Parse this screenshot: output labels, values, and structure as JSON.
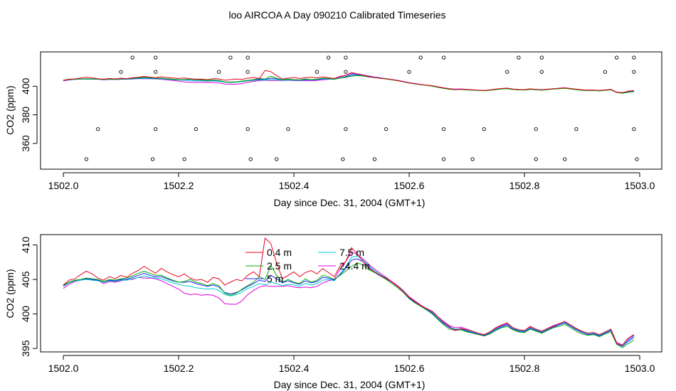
{
  "title": "loo AIRCOA A  Day 090210  Calibrated Timeseries",
  "colors": {
    "0.4 m": "#e8001c",
    "2.5 m": "#00b000",
    "5 m": "#2020ff",
    "7.5 m": "#00d0d0",
    "24.4 m": "#e000e0"
  },
  "chart_data": [
    {
      "type": "line+scatter",
      "xlabel": "Day since Dec. 31, 2004 (GMT+1)",
      "ylabel": "CO2 (ppm)",
      "xlim": [
        1502.0,
        1503.0
      ],
      "ylim": [
        342,
        424
      ],
      "x_ticks": [
        "1502.0",
        "1502.2",
        "1502.4",
        "1502.6",
        "1502.8",
        "1503.0"
      ],
      "y_ticks": [
        "360",
        "380",
        "400"
      ],
      "grid": false,
      "scatter_points": [
        [
          1502.12,
          420
        ],
        [
          1502.16,
          420
        ],
        [
          1502.29,
          420
        ],
        [
          1502.32,
          420
        ],
        [
          1502.46,
          420
        ],
        [
          1502.49,
          420
        ],
        [
          1502.62,
          420
        ],
        [
          1502.66,
          420
        ],
        [
          1502.79,
          420
        ],
        [
          1502.83,
          420
        ],
        [
          1502.96,
          420
        ],
        [
          1502.99,
          420
        ],
        [
          1502.1,
          410
        ],
        [
          1502.16,
          410
        ],
        [
          1502.27,
          410
        ],
        [
          1502.32,
          410
        ],
        [
          1502.44,
          410
        ],
        [
          1502.49,
          410
        ],
        [
          1502.6,
          410
        ],
        [
          1502.77,
          410
        ],
        [
          1502.83,
          410
        ],
        [
          1502.94,
          410
        ],
        [
          1502.99,
          410
        ],
        [
          1502.06,
          370
        ],
        [
          1502.16,
          370
        ],
        [
          1502.23,
          370
        ],
        [
          1502.32,
          370
        ],
        [
          1502.39,
          370
        ],
        [
          1502.49,
          370
        ],
        [
          1502.56,
          370
        ],
        [
          1502.66,
          370
        ],
        [
          1502.73,
          370
        ],
        [
          1502.82,
          370
        ],
        [
          1502.89,
          370
        ],
        [
          1502.99,
          370
        ],
        [
          1502.04,
          349
        ],
        [
          1502.155,
          349
        ],
        [
          1502.21,
          349
        ],
        [
          1502.325,
          349
        ],
        [
          1502.37,
          349
        ],
        [
          1502.485,
          349
        ],
        [
          1502.54,
          349
        ],
        [
          1502.66,
          349
        ],
        [
          1502.71,
          349
        ],
        [
          1502.82,
          349
        ],
        [
          1502.87,
          349
        ],
        [
          1502.995,
          349
        ]
      ]
    },
    {
      "type": "line",
      "xlabel": "Day since Dec. 31, 2004 (GMT+1)",
      "ylabel": "CO2 (ppm)",
      "xlim": [
        1502.0,
        1503.0
      ],
      "ylim": [
        394.5,
        411.5
      ],
      "x_ticks": [
        "1502.0",
        "1502.2",
        "1502.4",
        "1502.6",
        "1502.8",
        "1503.0"
      ],
      "y_ticks": [
        "395",
        "400",
        "405",
        "410"
      ],
      "grid": false,
      "legend_position": "top-center",
      "legend": [
        "0.4 m",
        "2.5 m",
        "5 m",
        "7.5 m",
        "24.4 m"
      ],
      "x": [
        1502.0,
        1502.01,
        1502.02,
        1502.03,
        1502.04,
        1502.05,
        1502.06,
        1502.07,
        1502.08,
        1502.09,
        1502.1,
        1502.11,
        1502.12,
        1502.13,
        1502.14,
        1502.15,
        1502.16,
        1502.17,
        1502.18,
        1502.19,
        1502.2,
        1502.21,
        1502.22,
        1502.23,
        1502.24,
        1502.25,
        1502.26,
        1502.27,
        1502.28,
        1502.29,
        1502.3,
        1502.31,
        1502.32,
        1502.33,
        1502.34,
        1502.35,
        1502.36,
        1502.37,
        1502.38,
        1502.39,
        1502.4,
        1502.41,
        1502.42,
        1502.43,
        1502.44,
        1502.45,
        1502.46,
        1502.47,
        1502.48,
        1502.49,
        1502.5,
        1502.51,
        1502.52,
        1502.53,
        1502.54,
        1502.55,
        1502.56,
        1502.57,
        1502.58,
        1502.59,
        1502.6,
        1502.61,
        1502.62,
        1502.63,
        1502.64,
        1502.65,
        1502.66,
        1502.67,
        1502.68,
        1502.69,
        1502.7,
        1502.71,
        1502.72,
        1502.73,
        1502.74,
        1502.75,
        1502.76,
        1502.77,
        1502.78,
        1502.79,
        1502.8,
        1502.81,
        1502.82,
        1502.83,
        1502.84,
        1502.85,
        1502.86,
        1502.87,
        1502.88,
        1502.89,
        1502.9,
        1502.91,
        1502.92,
        1502.93,
        1502.94,
        1502.95,
        1502.96,
        1502.97,
        1502.98,
        1502.99
      ],
      "series": [
        {
          "name": "0.4 m",
          "values": [
            404.2,
            404.9,
            405.1,
            405.7,
            406.2,
            405.8,
            405.2,
            404.9,
            405.4,
            405.1,
            405.6,
            405.3,
            405.9,
            406.3,
            406.9,
            406.4,
            405.9,
            406.6,
            406.1,
            405.7,
            405.4,
            405.8,
            405.2,
            404.9,
            405.0,
            404.6,
            405.3,
            405.1,
            404.2,
            404.6,
            405.0,
            404.8,
            405.6,
            406.1,
            405.4,
            411.0,
            410.2,
            407.4,
            405.1,
            405.6,
            406.1,
            405.4,
            406.0,
            406.3,
            405.8,
            406.6,
            406.0,
            405.4,
            406.9,
            407.6,
            409.6,
            408.7,
            407.6,
            406.6,
            406.1,
            405.5,
            405.2,
            404.6,
            404.0,
            403.2,
            402.4,
            401.8,
            401.2,
            400.8,
            400.4,
            399.6,
            398.8,
            398.2,
            397.6,
            397.9,
            397.7,
            397.5,
            397.2,
            397.0,
            397.4,
            398.0,
            398.4,
            398.7,
            398.0,
            397.7,
            397.6,
            398.2,
            397.8,
            397.5,
            397.9,
            398.2,
            398.6,
            398.9,
            398.4,
            397.9,
            397.5,
            397.2,
            397.3,
            397.0,
            397.4,
            397.8,
            395.7,
            395.5,
            396.5,
            397.0
          ]
        },
        {
          "name": "2.5 m",
          "values": [
            404.2,
            404.6,
            404.9,
            405.0,
            405.2,
            405.1,
            405.0,
            404.7,
            405.0,
            404.9,
            405.1,
            405.2,
            405.5,
            405.9,
            406.2,
            405.9,
            405.6,
            405.6,
            405.2,
            404.9,
            404.6,
            404.7,
            405.0,
            404.6,
            404.4,
            404.1,
            404.4,
            404.1,
            403.0,
            402.7,
            403.0,
            403.6,
            404.1,
            404.6,
            405.4,
            405.0,
            407.0,
            405.6,
            404.6,
            405.0,
            404.6,
            404.4,
            405.1,
            404.6,
            404.9,
            405.6,
            405.4,
            405.0,
            405.6,
            406.2,
            406.9,
            407.4,
            407.1,
            406.4,
            406.0,
            405.5,
            405.0,
            404.4,
            403.8,
            403.1,
            402.2,
            401.6,
            401.1,
            400.6,
            400.0,
            399.2,
            398.4,
            397.8,
            397.6,
            397.7,
            397.4,
            397.2,
            397.0,
            396.8,
            397.1,
            397.6,
            398.0,
            398.2,
            397.7,
            397.4,
            397.3,
            397.8,
            397.5,
            397.2,
            397.6,
            398.0,
            398.2,
            398.5,
            398.0,
            397.5,
            397.1,
            396.9,
            397.0,
            396.7,
            397.1,
            397.4,
            395.6,
            395.1,
            395.7,
            396.2
          ]
        },
        {
          "name": "5 m",
          "values": [
            404.1,
            404.6,
            404.9,
            405.0,
            405.1,
            405.0,
            404.9,
            404.7,
            404.9,
            404.8,
            405.0,
            405.0,
            405.3,
            405.6,
            405.9,
            405.6,
            405.4,
            405.4,
            405.1,
            404.8,
            404.6,
            404.6,
            404.7,
            404.4,
            404.2,
            404.0,
            404.2,
            403.9,
            403.1,
            402.9,
            403.1,
            403.5,
            404.0,
            404.4,
            404.9,
            404.7,
            405.6,
            405.1,
            404.5,
            404.8,
            404.5,
            404.3,
            404.8,
            404.5,
            404.7,
            405.3,
            405.2,
            404.9,
            405.7,
            406.6,
            407.8,
            408.0,
            407.6,
            406.8,
            406.1,
            405.6,
            405.1,
            404.6,
            404.0,
            403.2,
            402.3,
            401.7,
            401.1,
            400.7,
            400.1,
            399.3,
            398.6,
            398.0,
            397.7,
            397.8,
            397.5,
            397.3,
            397.1,
            396.9,
            397.2,
            397.7,
            398.1,
            398.4,
            397.8,
            397.5,
            397.4,
            397.9,
            397.6,
            397.3,
            397.7,
            398.1,
            398.4,
            398.7,
            398.2,
            397.7,
            397.3,
            397.0,
            397.1,
            396.8,
            397.2,
            397.6,
            395.7,
            395.3,
            396.0,
            396.6
          ]
        },
        {
          "name": "7.5 m",
          "values": [
            404.0,
            404.5,
            404.8,
            404.9,
            405.0,
            404.9,
            404.8,
            404.6,
            404.8,
            404.7,
            404.9,
            404.9,
            405.1,
            405.3,
            405.5,
            405.3,
            405.2,
            405.1,
            404.8,
            404.5,
            404.3,
            404.1,
            404.0,
            403.8,
            403.7,
            403.6,
            403.7,
            403.4,
            402.8,
            402.6,
            402.8,
            403.2,
            403.7,
            404.0,
            404.4,
            404.2,
            404.6,
            404.4,
            404.1,
            404.3,
            404.2,
            404.0,
            404.4,
            404.2,
            404.4,
            404.9,
            405.0,
            404.8,
            405.8,
            406.8,
            408.2,
            408.4,
            407.8,
            407.0,
            406.3,
            405.7,
            405.2,
            404.6,
            404.0,
            403.3,
            402.4,
            401.8,
            401.2,
            400.7,
            400.2,
            399.4,
            398.7,
            398.1,
            397.8,
            397.9,
            397.6,
            397.4,
            397.1,
            396.9,
            397.3,
            397.8,
            398.2,
            398.5,
            397.9,
            397.6,
            397.5,
            398.0,
            397.7,
            397.4,
            397.8,
            398.2,
            398.5,
            398.8,
            398.3,
            397.8,
            397.4,
            397.1,
            397.2,
            396.9,
            397.3,
            397.7,
            395.8,
            395.4,
            396.2,
            396.8
          ]
        },
        {
          "name": "24.4 m",
          "values": [
            403.7,
            404.3,
            404.7,
            404.9,
            405.1,
            405.0,
            404.9,
            404.4,
            404.7,
            404.6,
            404.8,
            405.0,
            405.0,
            405.3,
            405.2,
            405.2,
            405.1,
            404.8,
            404.4,
            404.0,
            403.6,
            403.0,
            402.8,
            402.9,
            402.7,
            402.8,
            402.7,
            402.3,
            401.5,
            401.4,
            401.4,
            401.9,
            402.8,
            403.4,
            403.9,
            404.1,
            404.0,
            404.0,
            404.0,
            404.1,
            403.9,
            403.8,
            403.9,
            403.8,
            404.0,
            404.5,
            404.8,
            405.0,
            406.5,
            407.6,
            409.0,
            408.6,
            408.0,
            407.2,
            406.5,
            405.9,
            405.3,
            404.7,
            404.1,
            403.4,
            402.5,
            401.9,
            401.3,
            400.8,
            400.3,
            399.6,
            398.9,
            398.3,
            398.0,
            398.1,
            397.8,
            397.5,
            397.2,
            397.0,
            397.4,
            397.9,
            398.3,
            398.6,
            398.0,
            397.7,
            397.6,
            398.1,
            397.8,
            397.5,
            397.9,
            398.3,
            398.6,
            398.9,
            398.4,
            397.9,
            397.5,
            397.2,
            397.3,
            397.0,
            397.4,
            397.8,
            395.9,
            395.5,
            396.3,
            396.9
          ]
        }
      ]
    }
  ]
}
